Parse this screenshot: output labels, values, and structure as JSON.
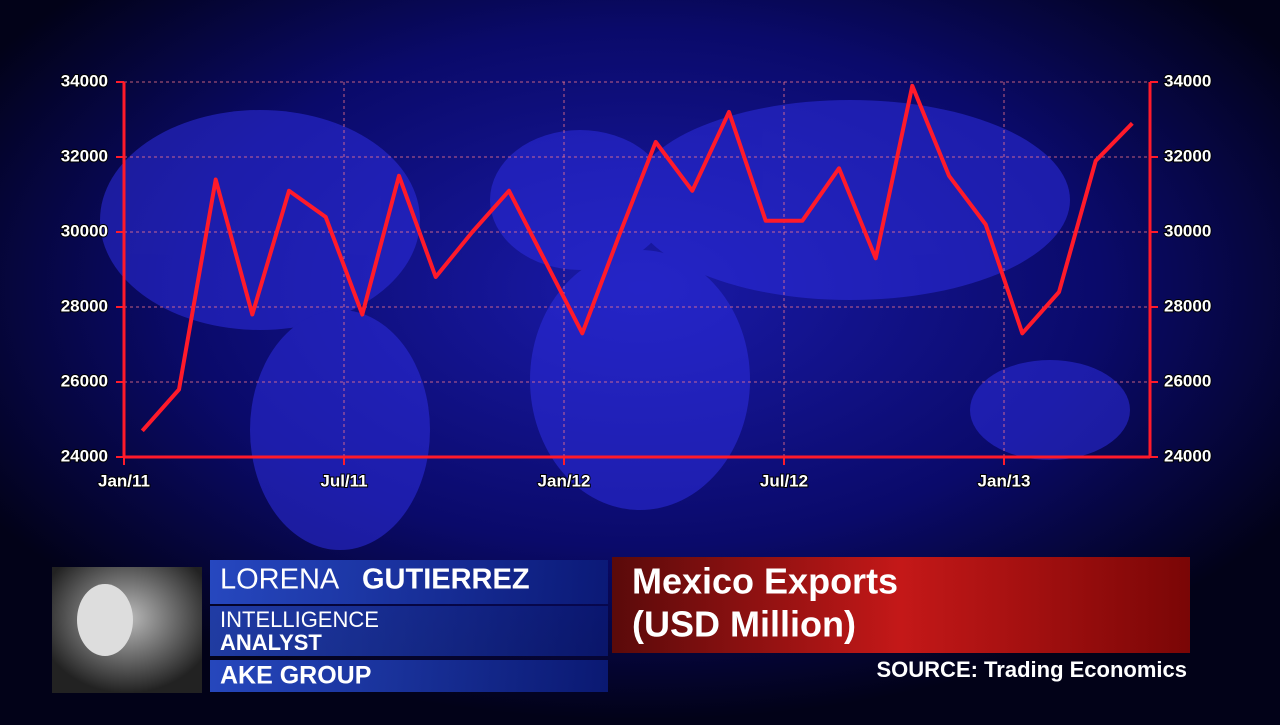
{
  "chart_data": {
    "type": "line",
    "x": [
      "2011-01",
      "2011-02",
      "2011-03",
      "2011-04",
      "2011-05",
      "2011-06",
      "2011-07",
      "2011-08",
      "2011-09",
      "2011-10",
      "2011-11",
      "2011-12",
      "2012-01",
      "2012-02",
      "2012-03",
      "2012-04",
      "2012-05",
      "2012-06",
      "2012-07",
      "2012-08",
      "2012-09",
      "2012-10",
      "2012-11",
      "2012-12",
      "2013-01",
      "2013-02",
      "2013-03",
      "2013-04"
    ],
    "values": [
      24700,
      25800,
      31400,
      27800,
      31100,
      30400,
      27800,
      31500,
      28800,
      30000,
      31100,
      29200,
      27300,
      29900,
      32400,
      31100,
      33200,
      30300,
      30300,
      31700,
      29300,
      33900,
      31500,
      30200,
      27300,
      28400,
      31900,
      32900
    ],
    "color": "#ff1a2a",
    "xticks": [
      {
        "value": "2011-01",
        "label": "Jan/11"
      },
      {
        "value": "2011-07",
        "label": "Jul/11"
      },
      {
        "value": "2012-01",
        "label": "Jan/12"
      },
      {
        "value": "2012-07",
        "label": "Jul/12"
      },
      {
        "value": "2013-01",
        "label": "Jan/13"
      }
    ],
    "ylim": [
      24000,
      34000
    ],
    "yticks": [
      24000,
      26000,
      28000,
      30000,
      32000,
      34000
    ],
    "y2lim": [
      24000,
      34000
    ],
    "y2ticks": [
      24000,
      26000,
      28000,
      30000,
      32000,
      34000
    ],
    "grid": true
  },
  "overlay": {
    "first_name": "LORENA",
    "last_name": "GUTIERREZ",
    "role_1": "INTELLIGENCE",
    "role_2": "ANALYST",
    "company": "AKE GROUP",
    "headline_1": "Mexico Exports",
    "headline_2": "(USD Million)",
    "source": "SOURCE: Trading Economics"
  }
}
